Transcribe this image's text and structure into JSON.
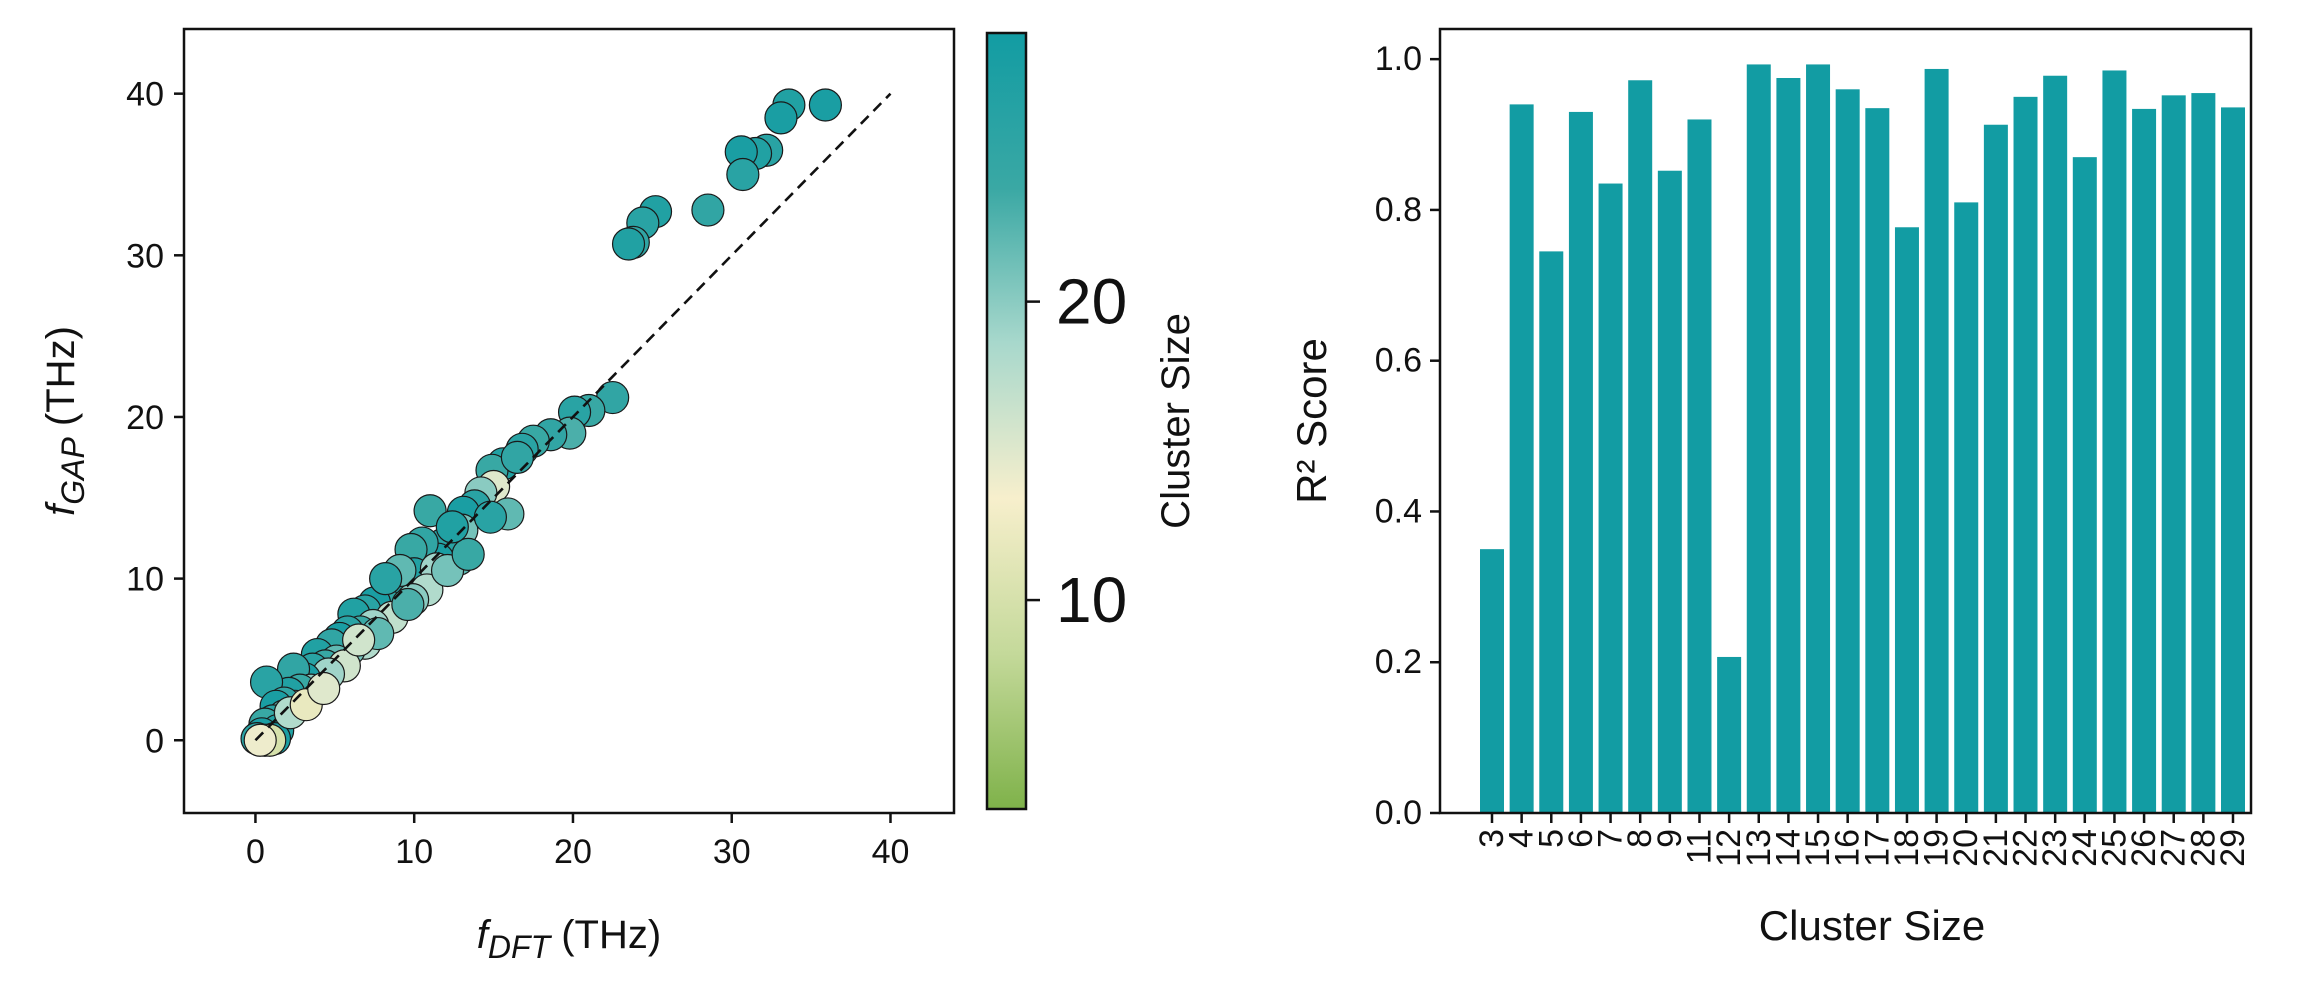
{
  "chart_data": [
    {
      "type": "scatter",
      "xlabel": {
        "main": "f",
        "sub": "DFT",
        "unit": " (THz)"
      },
      "ylabel": {
        "main": "f",
        "sub": "GAP",
        "unit": " (THz)"
      },
      "xlim": [
        -4.5,
        44
      ],
      "ylim": [
        -4.5,
        44
      ],
      "xticks": [
        "0",
        "10",
        "20",
        "30",
        "40"
      ],
      "yticks": [
        "0",
        "10",
        "20",
        "30",
        "40"
      ],
      "reference_line": {
        "from": [
          0,
          0
        ],
        "to": [
          40,
          40
        ],
        "style": "dashed"
      },
      "colorbar": {
        "label": "Cluster Size",
        "range": [
          3,
          29
        ],
        "ticks": [
          "10",
          "20"
        ],
        "colors": [
          "#7fb24a",
          "#c4d99a",
          "#f7efcc",
          "#a8d8cc",
          "#3aa8a4",
          "#129ca3"
        ]
      },
      "points": [
        {
          "x": 35.9,
          "y": 39.3,
          "c": 28
        },
        {
          "x": 33.6,
          "y": 39.3,
          "c": 27
        },
        {
          "x": 33.1,
          "y": 38.5,
          "c": 28
        },
        {
          "x": 32.2,
          "y": 36.5,
          "c": 26
        },
        {
          "x": 31.5,
          "y": 36.3,
          "c": 27
        },
        {
          "x": 30.6,
          "y": 36.4,
          "c": 28
        },
        {
          "x": 30.7,
          "y": 35.0,
          "c": 26
        },
        {
          "x": 28.5,
          "y": 32.8,
          "c": 25
        },
        {
          "x": 25.2,
          "y": 32.7,
          "c": 27
        },
        {
          "x": 24.4,
          "y": 32.0,
          "c": 26
        },
        {
          "x": 23.8,
          "y": 30.8,
          "c": 25
        },
        {
          "x": 23.5,
          "y": 30.7,
          "c": 27
        },
        {
          "x": 22.5,
          "y": 21.2,
          "c": 25
        },
        {
          "x": 21.0,
          "y": 20.4,
          "c": 24
        },
        {
          "x": 20.1,
          "y": 20.3,
          "c": 26
        },
        {
          "x": 19.8,
          "y": 19.0,
          "c": 23
        },
        {
          "x": 18.6,
          "y": 18.9,
          "c": 25
        },
        {
          "x": 17.5,
          "y": 18.5,
          "c": 24
        },
        {
          "x": 16.8,
          "y": 18.0,
          "c": 26
        },
        {
          "x": 15.6,
          "y": 17.1,
          "c": 27
        },
        {
          "x": 14.9,
          "y": 16.7,
          "c": 24
        },
        {
          "x": 15.0,
          "y": 15.7,
          "c": 15
        },
        {
          "x": 15.9,
          "y": 14.0,
          "c": 22
        },
        {
          "x": 14.2,
          "y": 15.3,
          "c": 20
        },
        {
          "x": 13.8,
          "y": 14.5,
          "c": 26
        },
        {
          "x": 13.1,
          "y": 14.1,
          "c": 28
        },
        {
          "x": 13.0,
          "y": 13.0,
          "c": 21
        },
        {
          "x": 12.8,
          "y": 11.2,
          "c": 22
        },
        {
          "x": 11.0,
          "y": 14.2,
          "c": 24
        },
        {
          "x": 11.8,
          "y": 12.1,
          "c": 26
        },
        {
          "x": 11.5,
          "y": 11.2,
          "c": 28
        },
        {
          "x": 10.5,
          "y": 12.2,
          "c": 25
        },
        {
          "x": 9.8,
          "y": 11.8,
          "c": 24
        },
        {
          "x": 10.0,
          "y": 10.3,
          "c": 27
        },
        {
          "x": 11.4,
          "y": 10.6,
          "c": 19
        },
        {
          "x": 9.0,
          "y": 9.5,
          "c": 28
        },
        {
          "x": 8.5,
          "y": 9.0,
          "c": 26
        },
        {
          "x": 10.8,
          "y": 9.3,
          "c": 18
        },
        {
          "x": 9.9,
          "y": 8.7,
          "c": 20
        },
        {
          "x": 9.1,
          "y": 10.5,
          "c": 22
        },
        {
          "x": 8.1,
          "y": 8.5,
          "c": 25
        },
        {
          "x": 7.5,
          "y": 8.5,
          "c": 28
        },
        {
          "x": 6.9,
          "y": 8.0,
          "c": 26
        },
        {
          "x": 6.2,
          "y": 7.8,
          "c": 27
        },
        {
          "x": 8.6,
          "y": 7.6,
          "c": 17
        },
        {
          "x": 7.4,
          "y": 7.1,
          "c": 19
        },
        {
          "x": 6.6,
          "y": 6.7,
          "c": 24
        },
        {
          "x": 5.8,
          "y": 6.7,
          "c": 26
        },
        {
          "x": 5.3,
          "y": 6.3,
          "c": 28
        },
        {
          "x": 6.9,
          "y": 6.0,
          "c": 18
        },
        {
          "x": 5.9,
          "y": 5.6,
          "c": 21
        },
        {
          "x": 4.8,
          "y": 5.9,
          "c": 25
        },
        {
          "x": 3.9,
          "y": 5.3,
          "c": 27
        },
        {
          "x": 5.1,
          "y": 4.9,
          "c": 22
        },
        {
          "x": 4.4,
          "y": 4.6,
          "c": 24
        },
        {
          "x": 3.6,
          "y": 4.4,
          "c": 26
        },
        {
          "x": 5.6,
          "y": 4.6,
          "c": 16
        },
        {
          "x": 4.6,
          "y": 4.1,
          "c": 19
        },
        {
          "x": 3.1,
          "y": 3.8,
          "c": 28
        },
        {
          "x": 2.4,
          "y": 4.4,
          "c": 25
        },
        {
          "x": 3.5,
          "y": 3.1,
          "c": 20
        },
        {
          "x": 2.8,
          "y": 3.1,
          "c": 24
        },
        {
          "x": 2.1,
          "y": 2.9,
          "c": 27
        },
        {
          "x": 0.7,
          "y": 3.6,
          "c": 26
        },
        {
          "x": 2.5,
          "y": 2.1,
          "c": 21
        },
        {
          "x": 1.8,
          "y": 2.3,
          "c": 25
        },
        {
          "x": 1.3,
          "y": 2.1,
          "c": 28
        },
        {
          "x": 1.8,
          "y": 1.5,
          "c": 22
        },
        {
          "x": 1.1,
          "y": 1.2,
          "c": 26
        },
        {
          "x": 0.6,
          "y": 1.0,
          "c": 24
        },
        {
          "x": 1.4,
          "y": 0.6,
          "c": 27
        },
        {
          "x": 0.4,
          "y": 0.4,
          "c": 28
        },
        {
          "x": 0.1,
          "y": 0.1,
          "c": 26
        },
        {
          "x": 0.6,
          "y": 0.0,
          "c": 25
        },
        {
          "x": 1.2,
          "y": 0.1,
          "c": 28
        },
        {
          "x": 0.9,
          "y": 0.0,
          "c": 10
        },
        {
          "x": 0.3,
          "y": 0.0,
          "c": 14
        },
        {
          "x": 2.2,
          "y": 1.7,
          "c": 18
        },
        {
          "x": 3.2,
          "y": 2.2,
          "c": 12
        },
        {
          "x": 4.3,
          "y": 3.2,
          "c": 15
        },
        {
          "x": 7.7,
          "y": 6.6,
          "c": 22
        },
        {
          "x": 9.6,
          "y": 8.4,
          "c": 23
        },
        {
          "x": 12.1,
          "y": 10.5,
          "c": 21
        },
        {
          "x": 13.4,
          "y": 11.5,
          "c": 24
        },
        {
          "x": 14.8,
          "y": 13.8,
          "c": 26
        },
        {
          "x": 16.5,
          "y": 17.5,
          "c": 25
        },
        {
          "x": 12.4,
          "y": 13.2,
          "c": 27
        },
        {
          "x": 8.2,
          "y": 10.0,
          "c": 26
        },
        {
          "x": 6.5,
          "y": 6.2,
          "c": 16
        }
      ]
    },
    {
      "type": "bar",
      "xlabel": "Cluster Size",
      "ylabel": "R² Score",
      "ylim": [
        0,
        1.04
      ],
      "yticks": [
        "0.0",
        "0.2",
        "0.4",
        "0.6",
        "0.8",
        "1.0"
      ],
      "bar_color": "#129ca3",
      "categories": [
        "3",
        "4",
        "5",
        "6",
        "7",
        "8",
        "9",
        "11",
        "12",
        "13",
        "14",
        "15",
        "16",
        "17",
        "18",
        "19",
        "20",
        "21",
        "22",
        "23",
        "24",
        "25",
        "26",
        "27",
        "28",
        "29"
      ],
      "values": [
        0.35,
        0.94,
        0.745,
        0.93,
        0.835,
        0.972,
        0.852,
        0.92,
        0.207,
        0.993,
        0.975,
        0.993,
        0.96,
        0.935,
        0.777,
        0.987,
        0.81,
        0.913,
        0.95,
        0.978,
        0.87,
        0.985,
        0.934,
        0.952,
        0.955,
        0.936
      ]
    }
  ]
}
